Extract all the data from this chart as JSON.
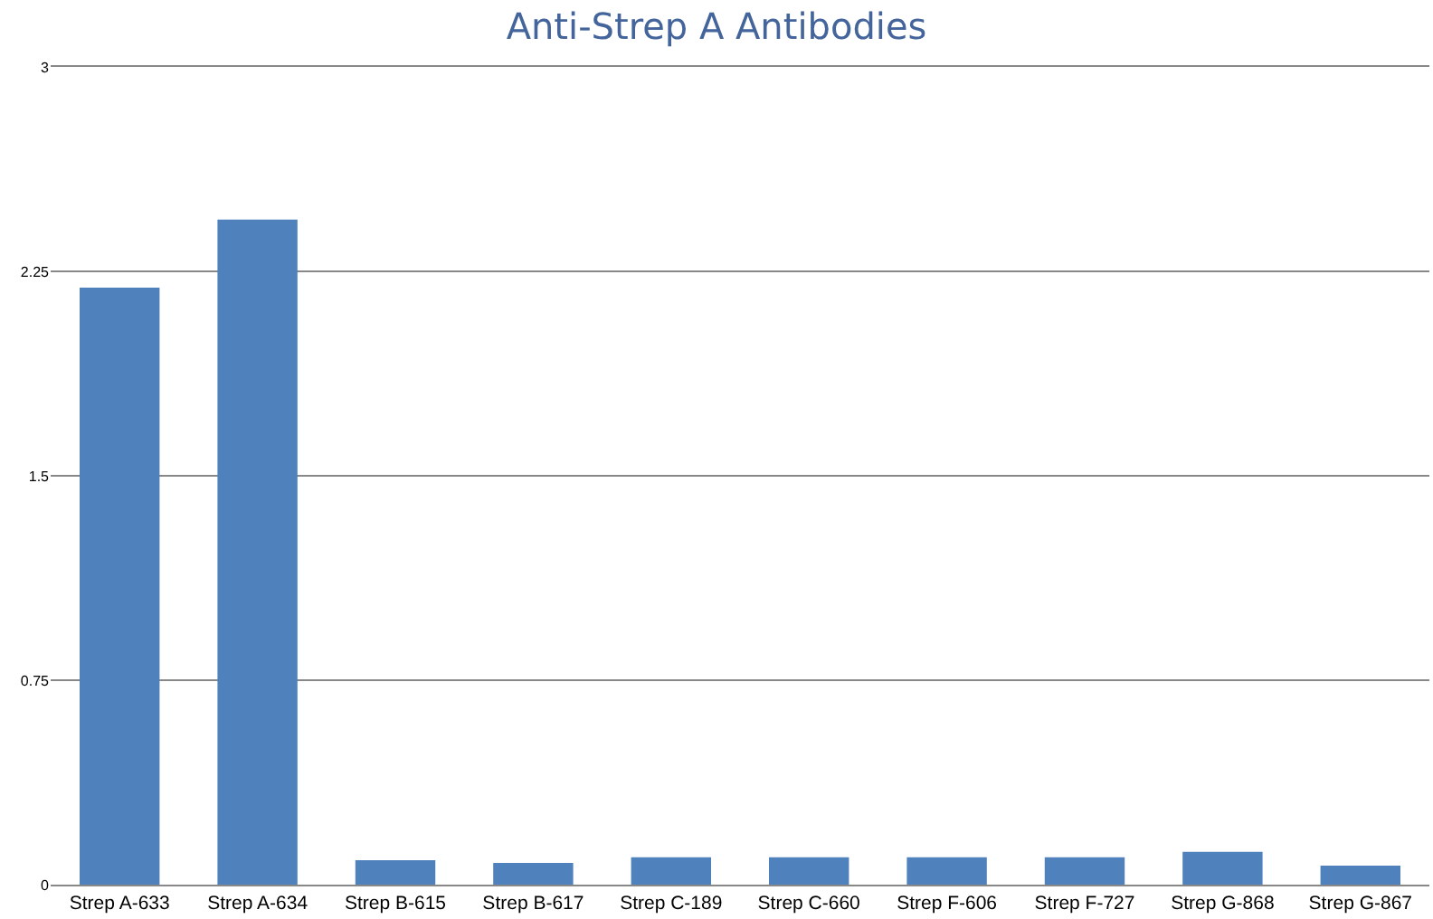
{
  "chart_data": {
    "type": "bar",
    "title": "Anti-Strep A Antibodies",
    "categories": [
      "Strep A-633",
      "Strep A-634",
      "Strep B-615",
      "Strep B-617",
      "Strep C-189",
      "Strep C-660",
      "Strep F-606",
      "Strep F-727",
      "Strep G-868",
      "Strep G-867"
    ],
    "values": [
      2.19,
      2.44,
      0.09,
      0.08,
      0.1,
      0.1,
      0.1,
      0.1,
      0.12,
      0.07
    ],
    "color": "#4f81bd",
    "ylim": [
      0,
      3
    ],
    "yticks": [
      0,
      0.75,
      1.5,
      2.25,
      3
    ],
    "grid": "y"
  }
}
